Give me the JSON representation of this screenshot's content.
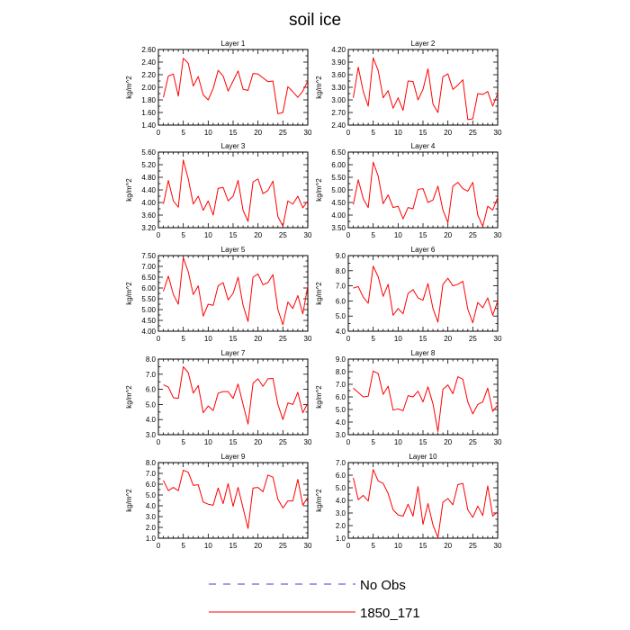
{
  "title": "soil ice",
  "legend": [
    {
      "label": "No Obs",
      "color": "#3b3bd4",
      "dash": true
    },
    {
      "label": "1850_171",
      "color": "#ff0000",
      "dash": false
    }
  ],
  "line_color": "#ff0000",
  "chart_data": [
    {
      "type": "line",
      "title": "Layer 1",
      "xlabel": "",
      "ylabel": "kg/m^2",
      "xlim": [
        0,
        30
      ],
      "xticks": [
        0,
        5,
        10,
        15,
        20,
        25,
        30
      ],
      "ylim": [
        1.4,
        2.6
      ],
      "yticks": [
        "1.40",
        "1.60",
        "1.80",
        "2.00",
        "2.20",
        "2.40",
        "2.60"
      ],
      "series": [
        {
          "x": [
            1,
            2,
            3,
            4,
            5,
            6,
            7,
            8,
            9,
            10,
            11,
            12,
            13,
            14,
            15,
            16,
            17,
            18,
            19,
            20,
            21,
            22,
            23,
            24,
            25,
            26,
            27,
            28,
            29,
            30
          ],
          "values": [
            1.84,
            2.18,
            2.21,
            1.86,
            2.46,
            2.38,
            2.02,
            2.17,
            1.88,
            1.8,
            1.98,
            2.27,
            2.18,
            1.94,
            2.1,
            2.26,
            1.97,
            1.95,
            2.22,
            2.21,
            2.15,
            2.09,
            2.1,
            1.58,
            1.6,
            2.01,
            1.93,
            1.84,
            1.94,
            2.1
          ]
        }
      ]
    },
    {
      "type": "line",
      "title": "Layer 2",
      "xlabel": "",
      "ylabel": "kg/m^2",
      "xlim": [
        0,
        30
      ],
      "xticks": [
        0,
        5,
        10,
        15,
        20,
        25,
        30
      ],
      "ylim": [
        2.4,
        4.2
      ],
      "yticks": [
        "2.40",
        "2.70",
        "3.00",
        "3.30",
        "3.60",
        "3.90",
        "4.20"
      ],
      "series": [
        {
          "x": [
            1,
            2,
            3,
            4,
            5,
            6,
            7,
            8,
            9,
            10,
            11,
            12,
            13,
            14,
            15,
            16,
            17,
            18,
            19,
            20,
            21,
            22,
            23,
            24,
            25,
            26,
            27,
            28,
            29,
            30
          ],
          "values": [
            3.05,
            3.78,
            3.2,
            2.85,
            4.0,
            3.7,
            3.05,
            3.22,
            2.8,
            3.05,
            2.75,
            3.45,
            3.44,
            3.0,
            3.25,
            3.74,
            2.9,
            2.7,
            3.55,
            3.62,
            3.25,
            3.35,
            3.48,
            2.53,
            2.55,
            3.15,
            3.13,
            3.2,
            2.85,
            3.15
          ]
        }
      ]
    },
    {
      "type": "line",
      "title": "Layer 3",
      "xlabel": "",
      "ylabel": "kg/m^2",
      "xlim": [
        0,
        30
      ],
      "xticks": [
        0,
        5,
        10,
        15,
        20,
        25,
        30
      ],
      "ylim": [
        3.2,
        5.6
      ],
      "yticks": [
        "3.20",
        "3.60",
        "4.00",
        "4.40",
        "4.80",
        "5.20",
        "5.60"
      ],
      "series": [
        {
          "x": [
            1,
            2,
            3,
            4,
            5,
            6,
            7,
            8,
            9,
            10,
            11,
            12,
            13,
            14,
            15,
            16,
            17,
            18,
            19,
            20,
            21,
            22,
            23,
            24,
            25,
            26,
            27,
            28,
            29,
            30
          ],
          "values": [
            3.95,
            4.7,
            4.05,
            3.85,
            5.35,
            4.75,
            3.95,
            4.2,
            3.75,
            4.05,
            3.6,
            4.45,
            4.48,
            4.05,
            4.2,
            4.7,
            3.75,
            3.4,
            4.65,
            4.75,
            4.28,
            4.38,
            4.68,
            3.55,
            3.25,
            4.05,
            3.95,
            4.2,
            3.83,
            4.05
          ]
        }
      ]
    },
    {
      "type": "line",
      "title": "Layer 4",
      "xlabel": "",
      "ylabel": "kg/m^2",
      "xlim": [
        0,
        30
      ],
      "xticks": [
        0,
        5,
        10,
        15,
        20,
        25,
        30
      ],
      "ylim": [
        3.5,
        6.5
      ],
      "yticks": [
        "3.50",
        "4.00",
        "4.50",
        "5.00",
        "5.50",
        "6.00",
        "6.50"
      ],
      "series": [
        {
          "x": [
            1,
            2,
            3,
            4,
            5,
            6,
            7,
            8,
            9,
            10,
            11,
            12,
            13,
            14,
            15,
            16,
            17,
            18,
            19,
            20,
            21,
            22,
            23,
            24,
            25,
            26,
            27,
            28,
            29,
            30
          ],
          "values": [
            4.42,
            5.4,
            4.65,
            4.3,
            6.1,
            5.55,
            4.45,
            4.8,
            4.3,
            4.35,
            3.85,
            4.3,
            4.25,
            5.02,
            5.05,
            4.5,
            4.6,
            5.15,
            4.2,
            3.7,
            5.15,
            5.3,
            5.05,
            4.95,
            5.3,
            4.0,
            3.55,
            4.35,
            4.2,
            4.7
          ]
        }
      ]
    },
    {
      "type": "line",
      "title": "Layer 5",
      "xlabel": "",
      "ylabel": "kg/m^2",
      "xlim": [
        0,
        30
      ],
      "xticks": [
        0,
        5,
        10,
        15,
        20,
        25,
        30
      ],
      "ylim": [
        4.0,
        7.5
      ],
      "yticks": [
        "4.00",
        "4.50",
        "5.00",
        "5.50",
        "6.00",
        "6.50",
        "7.00",
        "7.50"
      ],
      "series": [
        {
          "x": [
            1,
            2,
            3,
            4,
            5,
            6,
            7,
            8,
            9,
            10,
            11,
            12,
            13,
            14,
            15,
            16,
            17,
            18,
            19,
            20,
            21,
            22,
            23,
            24,
            25,
            26,
            27,
            28,
            29,
            30
          ],
          "values": [
            5.85,
            6.55,
            5.7,
            5.25,
            7.4,
            6.75,
            5.7,
            6.1,
            4.7,
            5.25,
            5.2,
            6.1,
            6.25,
            5.45,
            5.75,
            6.5,
            5.2,
            4.45,
            6.5,
            6.65,
            6.15,
            6.25,
            6.62,
            5.0,
            4.3,
            5.35,
            5.05,
            5.65,
            4.8,
            6.1
          ]
        }
      ]
    },
    {
      "type": "line",
      "title": "Layer 6",
      "xlabel": "",
      "ylabel": "kg/m^2",
      "xlim": [
        0,
        30
      ],
      "xticks": [
        0,
        5,
        10,
        15,
        20,
        25,
        30
      ],
      "ylim": [
        4.0,
        9.0
      ],
      "yticks": [
        "4.0",
        "5.0",
        "6.0",
        "7.0",
        "8.0",
        "9.0"
      ],
      "series": [
        {
          "x": [
            1,
            2,
            3,
            4,
            5,
            6,
            7,
            8,
            9,
            10,
            11,
            12,
            13,
            14,
            15,
            16,
            17,
            18,
            19,
            20,
            21,
            22,
            23,
            24,
            25,
            26,
            27,
            28,
            29,
            30
          ],
          "values": [
            6.85,
            6.95,
            6.25,
            5.85,
            8.3,
            7.6,
            6.3,
            7.1,
            5.05,
            5.5,
            5.15,
            6.5,
            6.75,
            6.2,
            6.05,
            7.15,
            5.5,
            4.6,
            7.1,
            7.5,
            7.0,
            7.1,
            7.3,
            5.45,
            4.55,
            5.9,
            5.55,
            6.2,
            5.05,
            6.0
          ]
        }
      ]
    },
    {
      "type": "line",
      "title": "Layer 7",
      "xlabel": "",
      "ylabel": "kg/m^2",
      "xlim": [
        0,
        30
      ],
      "xticks": [
        0,
        5,
        10,
        15,
        20,
        25,
        30
      ],
      "ylim": [
        3.0,
        8.0
      ],
      "yticks": [
        "3.0",
        "4.0",
        "5.0",
        "6.0",
        "7.0",
        "8.0"
      ],
      "series": [
        {
          "x": [
            1,
            2,
            3,
            4,
            5,
            6,
            7,
            8,
            9,
            10,
            11,
            12,
            13,
            14,
            15,
            16,
            17,
            18,
            19,
            20,
            21,
            22,
            23,
            24,
            25,
            26,
            27,
            28,
            29,
            30
          ],
          "values": [
            6.3,
            6.15,
            5.45,
            5.4,
            7.5,
            7.1,
            5.75,
            6.25,
            4.45,
            4.9,
            4.6,
            5.75,
            5.85,
            5.85,
            5.4,
            6.35,
            5.0,
            3.7,
            6.4,
            6.7,
            6.2,
            6.7,
            6.72,
            5.0,
            4.0,
            5.1,
            5.0,
            5.8,
            4.45,
            5.1
          ]
        }
      ]
    },
    {
      "type": "line",
      "title": "Layer 8",
      "xlabel": "",
      "ylabel": "kg/m^2",
      "xlim": [
        0,
        30
      ],
      "xticks": [
        0,
        5,
        10,
        15,
        20,
        25,
        30
      ],
      "ylim": [
        3.0,
        9.0
      ],
      "yticks": [
        "3.0",
        "4.0",
        "5.0",
        "6.0",
        "7.0",
        "8.0",
        "9.0"
      ],
      "series": [
        {
          "x": [
            1,
            2,
            3,
            4,
            5,
            6,
            7,
            8,
            9,
            10,
            11,
            12,
            13,
            14,
            15,
            16,
            17,
            18,
            19,
            20,
            21,
            22,
            23,
            24,
            25,
            26,
            27,
            28,
            29,
            30
          ],
          "values": [
            6.7,
            6.35,
            6.0,
            6.05,
            8.05,
            7.85,
            6.2,
            6.85,
            4.95,
            5.05,
            4.9,
            6.1,
            6.0,
            6.45,
            5.6,
            6.8,
            5.45,
            3.25,
            6.6,
            6.95,
            6.25,
            7.6,
            7.4,
            5.6,
            4.65,
            5.4,
            5.6,
            6.7,
            4.85,
            5.35
          ]
        }
      ]
    },
    {
      "type": "line",
      "title": "Layer 9",
      "xlabel": "",
      "ylabel": "kg/m^2",
      "xlim": [
        0,
        30
      ],
      "xticks": [
        0,
        5,
        10,
        15,
        20,
        25,
        30
      ],
      "ylim": [
        1.0,
        8.0
      ],
      "yticks": [
        "1.0",
        "2.0",
        "3.0",
        "4.0",
        "5.0",
        "6.0",
        "7.0",
        "8.0"
      ],
      "series": [
        {
          "x": [
            1,
            2,
            3,
            4,
            5,
            6,
            7,
            8,
            9,
            10,
            11,
            12,
            13,
            14,
            15,
            16,
            17,
            18,
            19,
            20,
            21,
            22,
            23,
            24,
            25,
            26,
            27,
            28,
            29,
            30
          ],
          "values": [
            6.35,
            5.4,
            5.7,
            5.4,
            7.3,
            7.1,
            5.9,
            5.95,
            4.35,
            4.15,
            4.05,
            5.65,
            4.2,
            6.05,
            3.95,
            5.7,
            3.8,
            1.9,
            5.65,
            5.7,
            5.3,
            6.85,
            6.65,
            4.6,
            3.8,
            4.45,
            4.45,
            6.45,
            4.05,
            4.8
          ]
        }
      ]
    },
    {
      "type": "line",
      "title": "Layer 10",
      "xlabel": "",
      "ylabel": "kg/m^2",
      "xlim": [
        0,
        30
      ],
      "xticks": [
        0,
        5,
        10,
        15,
        20,
        25,
        30
      ],
      "ylim": [
        1.0,
        7.0
      ],
      "yticks": [
        "1.0",
        "2.0",
        "3.0",
        "4.0",
        "5.0",
        "6.0",
        "7.0"
      ],
      "series": [
        {
          "x": [
            1,
            2,
            3,
            4,
            5,
            6,
            7,
            8,
            9,
            10,
            11,
            12,
            13,
            14,
            15,
            16,
            17,
            18,
            19,
            20,
            21,
            22,
            23,
            24,
            25,
            26,
            27,
            28,
            29,
            30
          ],
          "values": [
            5.8,
            4.05,
            4.4,
            3.95,
            6.45,
            5.55,
            5.35,
            4.55,
            3.25,
            2.85,
            2.75,
            3.7,
            2.75,
            5.1,
            2.1,
            3.75,
            2.05,
            1.05,
            3.85,
            4.15,
            3.65,
            5.25,
            5.35,
            3.25,
            2.65,
            3.55,
            2.8,
            5.15,
            2.75,
            3.1
          ]
        }
      ]
    }
  ]
}
